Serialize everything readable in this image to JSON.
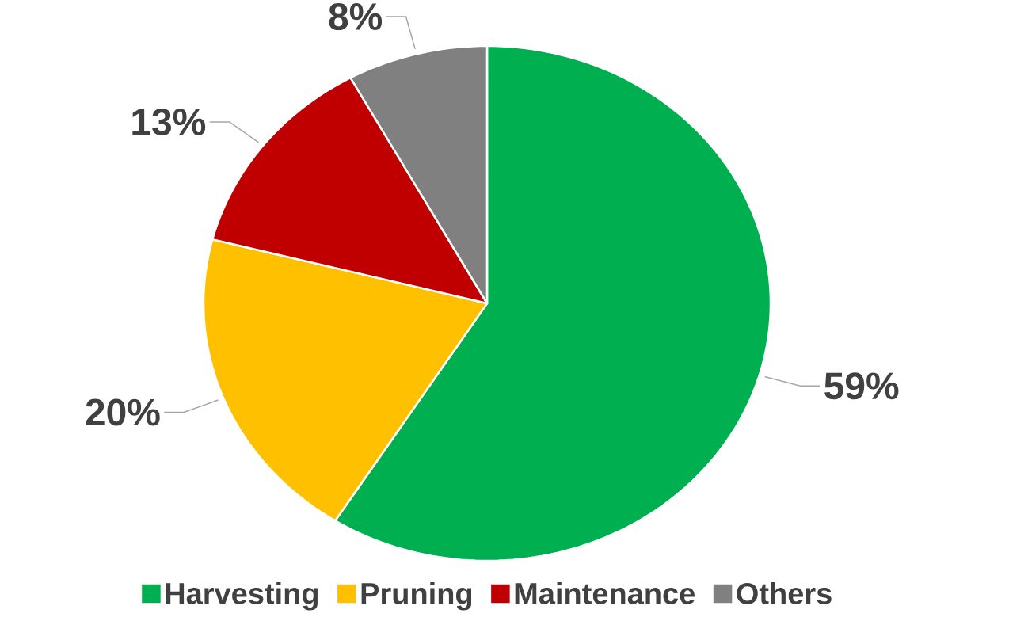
{
  "chart_data": {
    "type": "pie",
    "categories": [
      "Harvesting",
      "Pruning",
      "Maintenance",
      "Others"
    ],
    "values": [
      59,
      20,
      13,
      8
    ],
    "colors": [
      "#00b050",
      "#ffc000",
      "#c00000",
      "#808080"
    ],
    "value_labels": [
      "59%",
      "20%",
      "13%",
      "8%"
    ],
    "legend": "bottom"
  }
}
